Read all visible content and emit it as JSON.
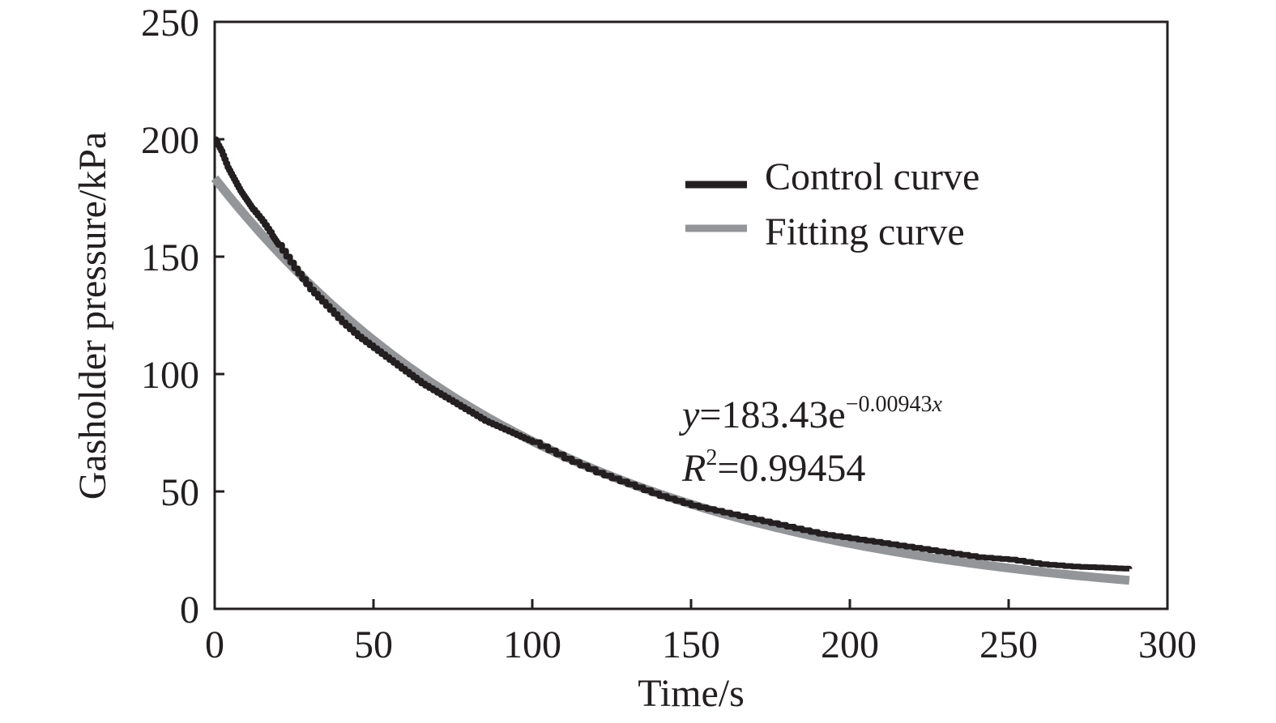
{
  "chart_data": {
    "type": "line",
    "xlabel": "Time/s",
    "ylabel": "Gasholder pressure/kPa",
    "xlim": [
      0,
      300
    ],
    "ylim": [
      0,
      250
    ],
    "xticks": [
      0,
      50,
      100,
      150,
      200,
      250,
      300
    ],
    "yticks": [
      0,
      50,
      100,
      150,
      200,
      250
    ],
    "grid": false,
    "legend_position": "top-right",
    "series": [
      {
        "name": "Control curve",
        "color": "#231f20",
        "x": [
          0,
          2,
          4,
          6,
          8,
          10,
          12,
          15,
          18,
          20,
          25,
          30,
          35,
          40,
          45,
          50,
          55,
          60,
          65,
          70,
          75,
          80,
          85,
          90,
          95,
          100,
          110,
          120,
          130,
          140,
          150,
          160,
          170,
          180,
          190,
          200,
          210,
          220,
          230,
          240,
          250,
          260,
          270,
          280,
          288
        ],
        "y": [
          200,
          195,
          188,
          183,
          178,
          174,
          170,
          165,
          159,
          155,
          145,
          136,
          129,
          122,
          116,
          111,
          106,
          101,
          96,
          92,
          88,
          84,
          80,
          77,
          74,
          71,
          64,
          58,
          53,
          48,
          44,
          41,
          38,
          35,
          32,
          30,
          28,
          26,
          24,
          22,
          21,
          19,
          18,
          17.5,
          17
        ]
      },
      {
        "name": "Fitting curve",
        "color": "#939598",
        "equation": "y=183.43e^(-0.00943x)",
        "a": 183.43,
        "b": -0.00943,
        "x_range": [
          0,
          288
        ]
      }
    ],
    "annotations": {
      "equation_y": "y",
      "equation_rest": "=183.43e",
      "equation_exp": "−0.00943",
      "equation_exp_var": "x",
      "r2_R": "R",
      "r2_sup": "2",
      "r2_value": "=0.99454"
    }
  }
}
